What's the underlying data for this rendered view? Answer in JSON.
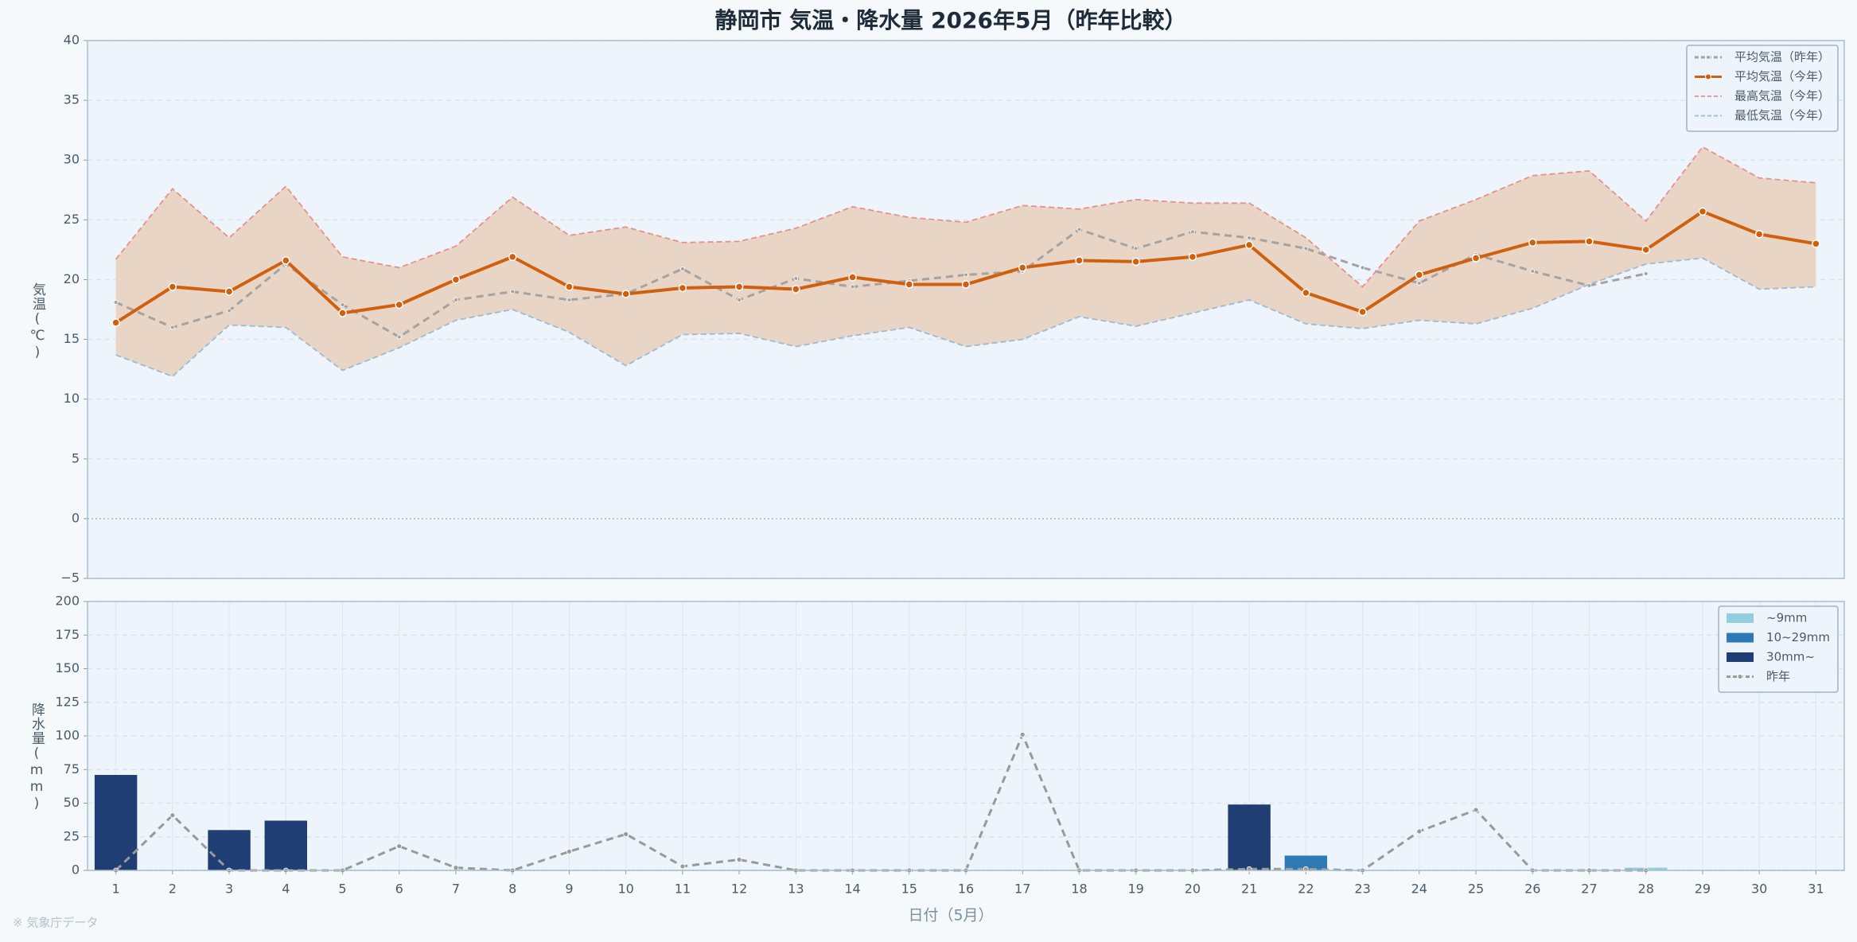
{
  "note": "※ 気象庁データ",
  "chart_data": [
    {
      "type": "line",
      "title": "静岡市 気温・降水量 2026年5月（昨年比較）",
      "ylabel": "気温(℃)",
      "x": [
        1,
        2,
        3,
        4,
        5,
        6,
        7,
        8,
        9,
        10,
        11,
        12,
        13,
        14,
        15,
        16,
        17,
        18,
        19,
        20,
        21,
        22,
        23,
        24,
        25,
        26,
        27,
        28,
        29,
        30,
        31
      ],
      "xlim": [
        0.5,
        31.5
      ],
      "ylim": [
        -5,
        40
      ],
      "yticks": [
        {
          "value": -5,
          "label": "−5"
        },
        0,
        5,
        10,
        15,
        20,
        25,
        30,
        35,
        40
      ],
      "grid": true,
      "legend": "upper right",
      "band": {
        "between": [
          2,
          3
        ],
        "color": "#e9d5c5"
      },
      "series": [
        {
          "name": "平均気温（昨年）",
          "color": "#a3a3a3",
          "linestyle": "dashed",
          "width": 3,
          "marker": 2.5,
          "values": [
            18.1,
            16.0,
            17.4,
            21.3,
            17.9,
            15.2,
            18.3,
            19.0,
            18.3,
            18.8,
            20.9,
            18.3,
            20.1,
            19.4,
            19.9,
            20.4,
            20.7,
            24.2,
            22.6,
            24.0,
            23.5,
            22.6,
            21.0,
            19.7,
            22.1,
            20.7,
            19.5,
            20.5,
            null,
            null,
            null
          ]
        },
        {
          "name": "平均気温（今年）",
          "color": "#d0600e",
          "linestyle": "solid",
          "width": 4,
          "marker": 4.5,
          "values": [
            16.4,
            19.4,
            19.0,
            21.6,
            17.2,
            17.9,
            20.0,
            21.9,
            19.4,
            18.8,
            19.3,
            19.4,
            19.2,
            20.2,
            19.6,
            19.6,
            21.0,
            21.6,
            21.5,
            21.9,
            22.9,
            18.9,
            17.3,
            20.4,
            21.8,
            23.1,
            23.2,
            22.5,
            25.7,
            23.8,
            23.0
          ]
        },
        {
          "name": "最高気温（今年）",
          "color": "#e8908a",
          "linestyle": "dashed",
          "width": 1.8,
          "marker": 0,
          "values": [
            21.7,
            27.6,
            23.5,
            27.8,
            21.9,
            21.0,
            22.8,
            26.9,
            23.7,
            24.4,
            23.1,
            23.2,
            24.3,
            26.1,
            25.2,
            24.8,
            26.2,
            25.9,
            26.7,
            26.4,
            26.4,
            23.5,
            19.4,
            24.9,
            26.7,
            28.7,
            29.1,
            24.9,
            31.1,
            28.5,
            28.1
          ]
        },
        {
          "name": "最低気温（今年）",
          "color": "#9bbad6",
          "linestyle": "dashed",
          "width": 1.8,
          "marker": 0,
          "values": [
            13.7,
            11.9,
            16.2,
            16.0,
            12.4,
            14.3,
            16.6,
            17.5,
            15.6,
            12.8,
            15.4,
            15.5,
            14.4,
            15.3,
            16.0,
            14.4,
            15.0,
            16.9,
            16.1,
            17.2,
            18.3,
            16.3,
            15.9,
            16.6,
            16.3,
            17.6,
            19.6,
            21.3,
            21.8,
            19.2,
            19.4
          ]
        }
      ]
    },
    {
      "type": "bar",
      "ylabel": "降水量(mm)",
      "xlabel": "日付（5月）",
      "x": [
        1,
        2,
        3,
        4,
        5,
        6,
        7,
        8,
        9,
        10,
        11,
        12,
        13,
        14,
        15,
        16,
        17,
        18,
        19,
        20,
        21,
        22,
        23,
        24,
        25,
        26,
        27,
        28,
        29,
        30,
        31
      ],
      "xlim": [
        0.5,
        31.5
      ],
      "xticks": [
        1,
        2,
        3,
        4,
        5,
        6,
        7,
        8,
        9,
        10,
        11,
        12,
        13,
        14,
        15,
        16,
        17,
        18,
        19,
        20,
        21,
        22,
        23,
        24,
        25,
        26,
        27,
        28,
        29,
        30,
        31
      ],
      "ylim": [
        0,
        200
      ],
      "yticks": [
        0,
        25,
        50,
        75,
        100,
        125,
        150,
        175,
        200
      ],
      "grid": true,
      "legend": "upper right",
      "series": [
        {
          "name": "~9mm",
          "kind": "bar",
          "color": "#92cde0",
          "values": [
            null,
            0,
            null,
            null,
            0,
            0,
            0,
            0,
            0,
            0,
            0,
            0,
            0,
            0,
            0,
            0,
            0,
            0,
            0,
            0,
            null,
            null,
            0,
            0,
            0,
            0,
            0,
            2,
            0,
            0,
            0
          ]
        },
        {
          "name": "10~29mm",
          "kind": "bar",
          "color": "#2e78b6",
          "values": [
            null,
            null,
            null,
            null,
            null,
            null,
            null,
            null,
            null,
            null,
            null,
            null,
            null,
            null,
            null,
            null,
            null,
            null,
            null,
            null,
            null,
            11,
            null,
            null,
            null,
            null,
            null,
            null,
            null,
            null,
            null
          ]
        },
        {
          "name": "30mm~",
          "kind": "bar",
          "color": "#1f3f74",
          "values": [
            71,
            null,
            30,
            37,
            null,
            null,
            null,
            null,
            null,
            null,
            null,
            null,
            null,
            null,
            null,
            null,
            null,
            null,
            null,
            null,
            49,
            null,
            null,
            null,
            null,
            null,
            null,
            null,
            null,
            null,
            null
          ]
        },
        {
          "name": "昨年",
          "kind": "line",
          "color": "#999999",
          "linestyle": "dashed",
          "width": 3,
          "marker": 3,
          "values": [
            0,
            41,
            0,
            0,
            0,
            18,
            2,
            0,
            14,
            27,
            3,
            8,
            0,
            0,
            0,
            0,
            101,
            0,
            0,
            0,
            1,
            1,
            0,
            29,
            45,
            0,
            0,
            0,
            null,
            null,
            null
          ]
        }
      ]
    }
  ]
}
